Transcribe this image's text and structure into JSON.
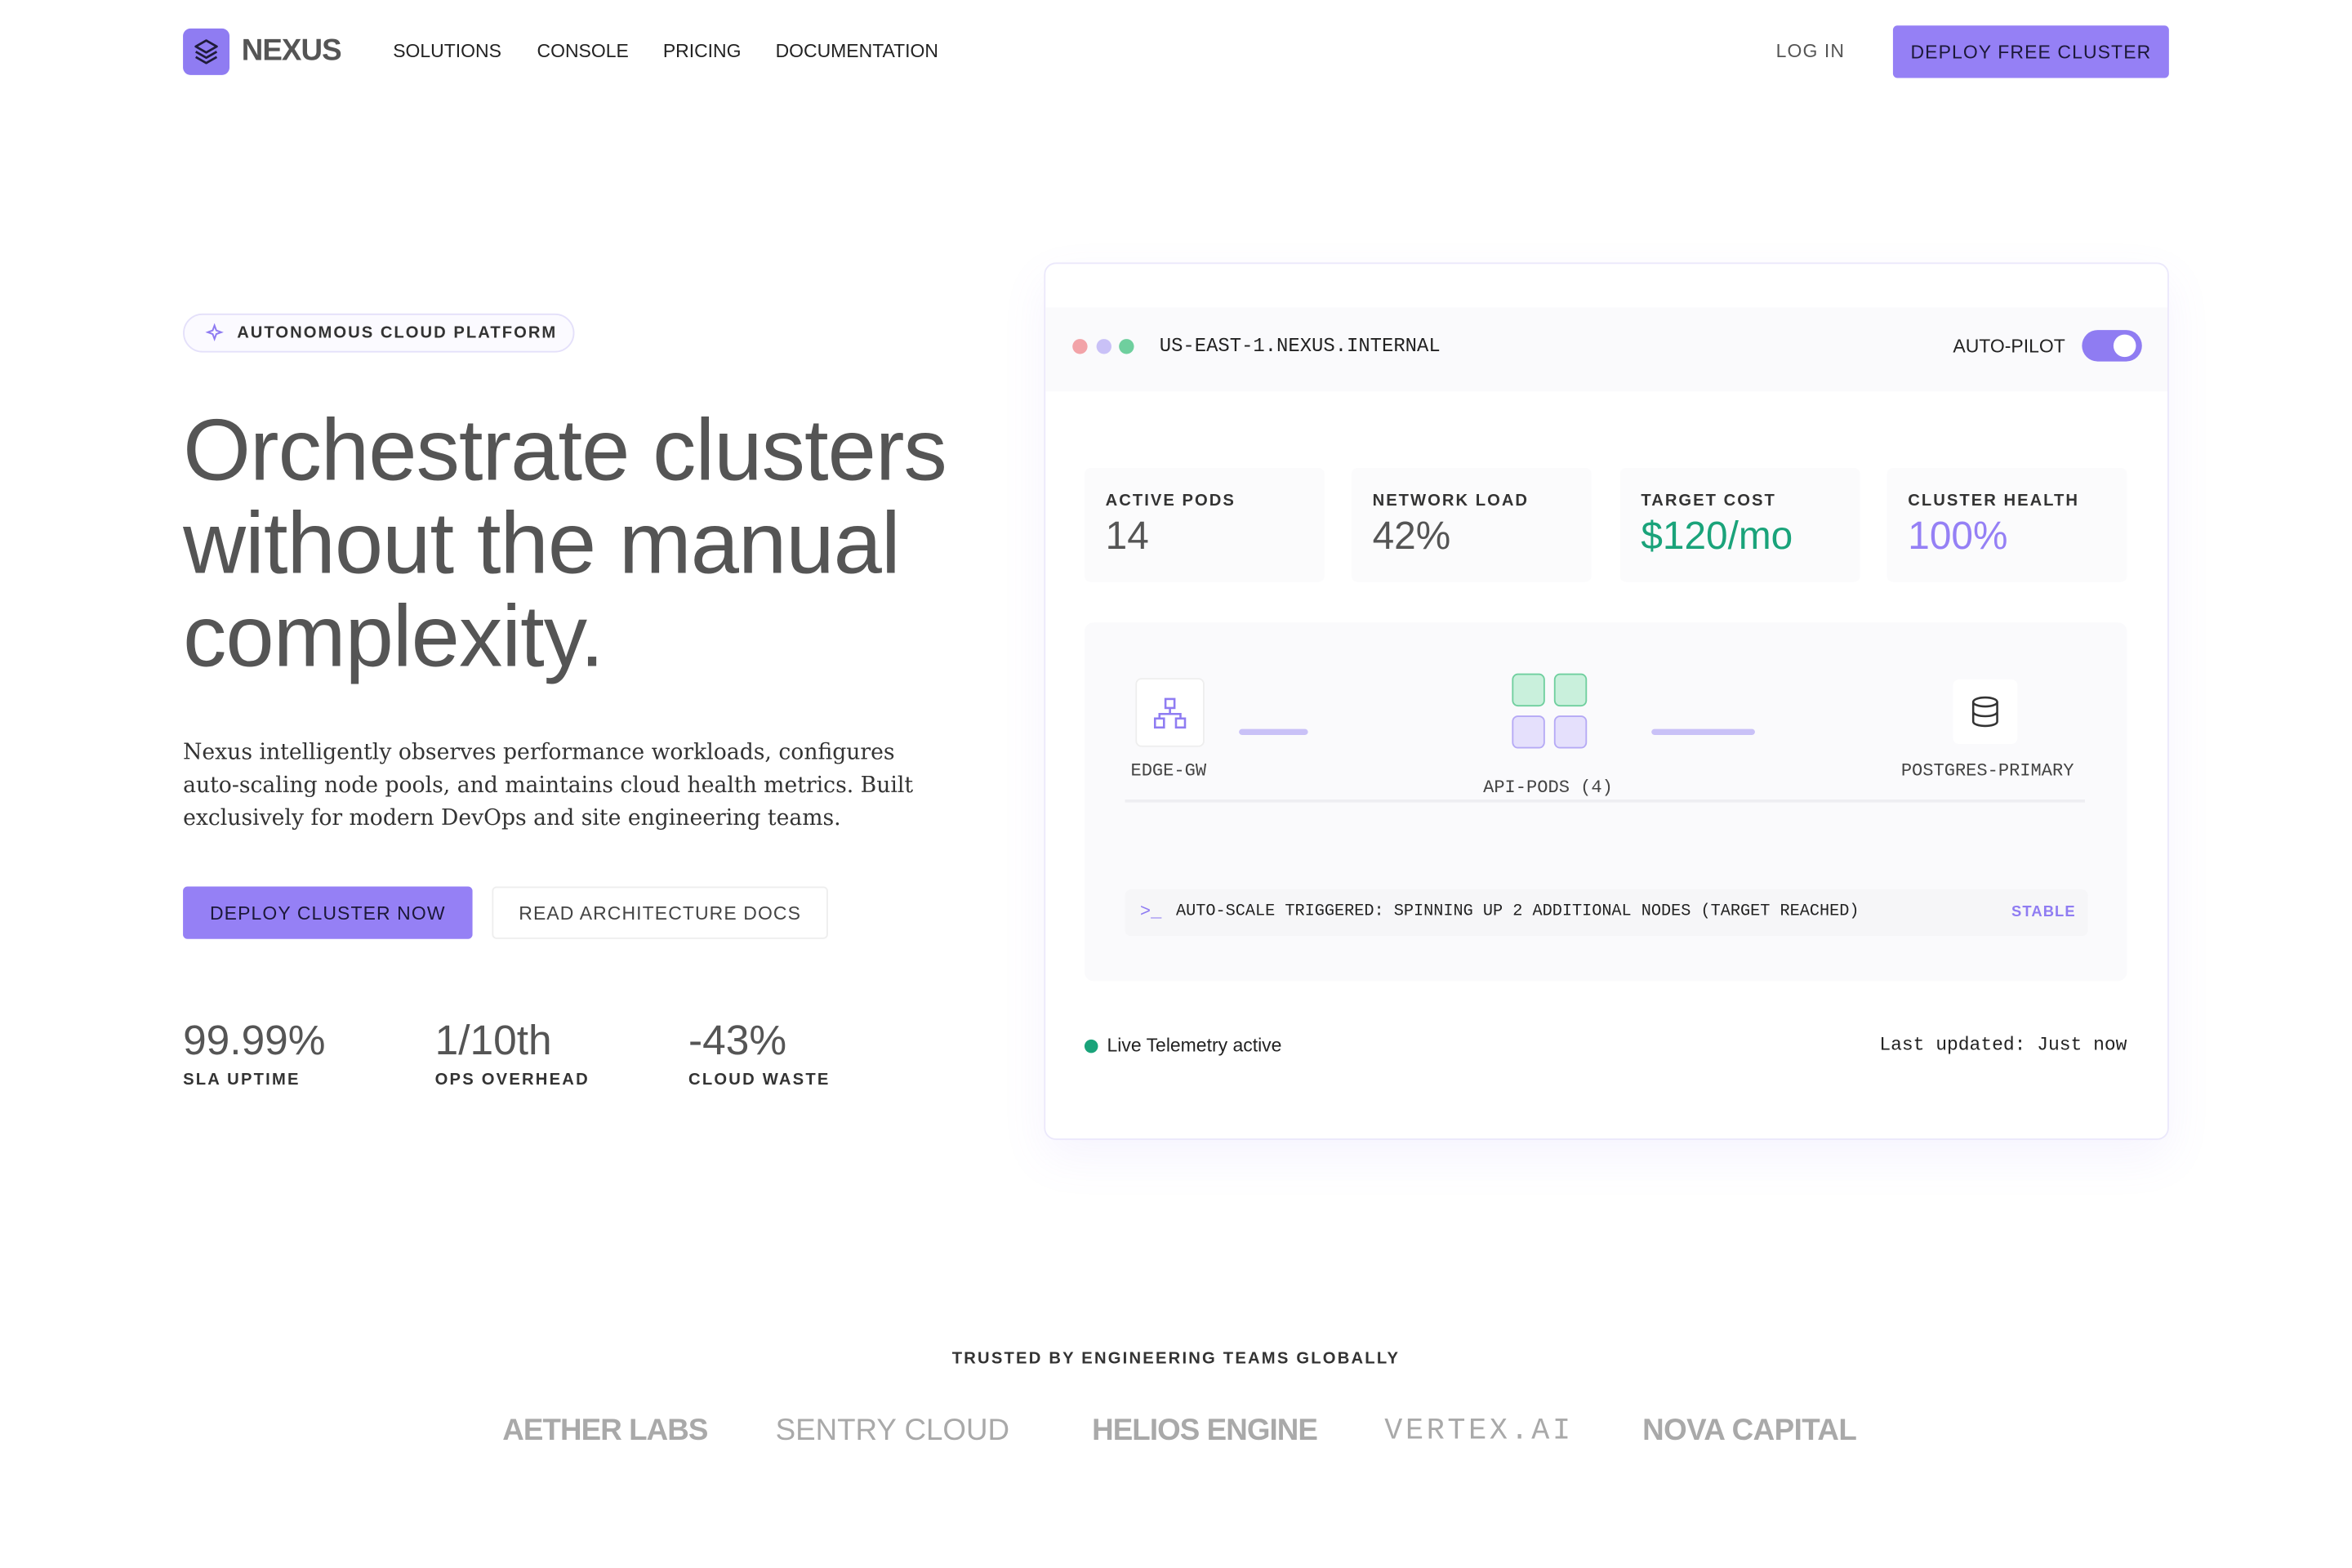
{
  "nav": {
    "logo": "NEXUS",
    "links": [
      "SOLUTIONS",
      "CONSOLE",
      "PRICING",
      "DOCUMENTATION"
    ],
    "login": "LOG IN",
    "cta": "DEPLOY FREE CLUSTER"
  },
  "hero": {
    "badge": "AUTONOMOUS CLOUD PLATFORM",
    "title": "Orchestrate clusters without the manual complexity.",
    "description": "Nexus intelligently observes performance workloads, configures auto-scaling node pools, and maintains cloud health metrics. Built exclusively for modern DevOps and site engineering teams.",
    "primary_button": "DEPLOY CLUSTER NOW",
    "secondary_button": "READ ARCHITECTURE DOCS",
    "stats": [
      {
        "value": "99.99%",
        "label": "SLA UPTIME"
      },
      {
        "value": "1/10th",
        "label": "OPS OVERHEAD"
      },
      {
        "value": "-43%",
        "label": "CLOUD WASTE"
      }
    ]
  },
  "dashboard": {
    "host": "US-EAST-1.NEXUS.INTERNAL",
    "toggle_label": "AUTO-PILOT",
    "metrics": [
      {
        "label": "ACTIVE PODS",
        "value": "14"
      },
      {
        "label": "NETWORK LOAD",
        "value": "42%"
      },
      {
        "label": "TARGET COST",
        "value": "$120/mo"
      },
      {
        "label": "CLUSTER HEALTH",
        "value": "100%"
      }
    ],
    "nodes": [
      "EDGE-GW",
      "API-PODS (4)",
      "POSTGRES-PRIMARY"
    ],
    "log": {
      "prompt": ">_",
      "message": "AUTO-SCALE TRIGGERED: SPINNING UP 2 ADDITIONAL NODES (TARGET REACHED)",
      "status": "STABLE"
    },
    "telemetry": "Live Telemetry active",
    "updated": "Last updated: Just now"
  },
  "trusted": {
    "title": "TRUSTED BY ENGINEERING TEAMS GLOBALLY",
    "logos": [
      "AETHER LABS",
      "SENTRY CLOUD",
      "HELIOS ENGINE",
      "VERTEX.AI",
      "NOVA CAPITAL"
    ]
  }
}
